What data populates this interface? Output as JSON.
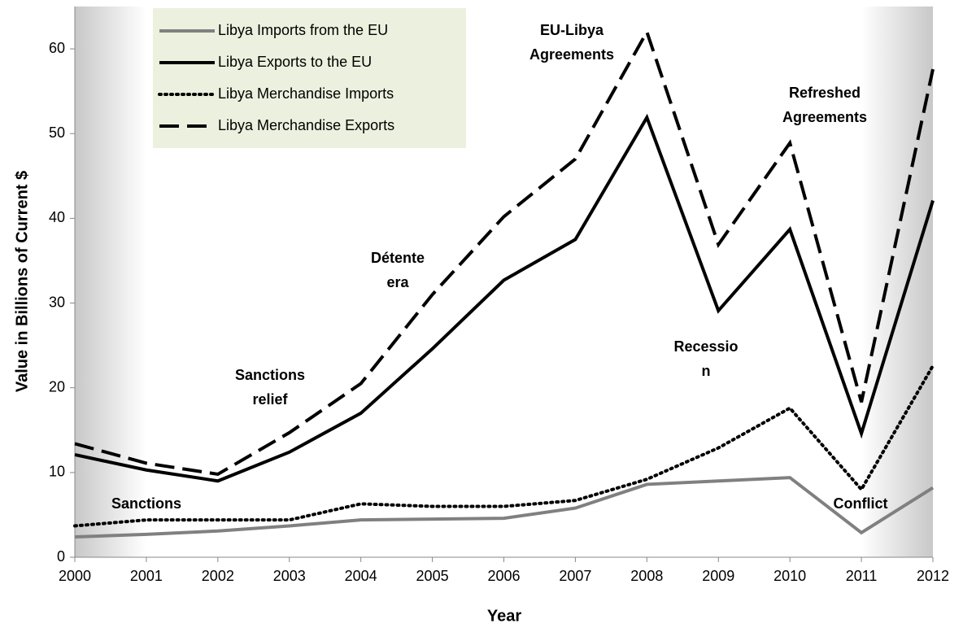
{
  "chart_data": {
    "type": "line",
    "x_label": "Year",
    "y_label": "Value in Billions of Current $",
    "x": [
      2000,
      2001,
      2002,
      2003,
      2004,
      2005,
      2006,
      2007,
      2008,
      2009,
      2010,
      2011,
      2012
    ],
    "xlim": [
      2000,
      2012
    ],
    "xticks": [
      2000,
      2001,
      2002,
      2003,
      2004,
      2005,
      2006,
      2007,
      2008,
      2009,
      2010,
      2011,
      2012
    ],
    "ylim": [
      0,
      65
    ],
    "yticks": [
      0,
      10,
      20,
      30,
      40,
      50,
      60
    ],
    "legend": "top-left",
    "series": [
      {
        "name": "Libya Imports from the EU",
        "color": "#808080",
        "dash": "solid",
        "values": [
          2.4,
          2.7,
          3.1,
          3.7,
          4.4,
          4.5,
          4.6,
          5.8,
          8.6,
          9.0,
          9.4,
          2.9,
          8.2
        ]
      },
      {
        "name": "Libya Exports to the EU",
        "color": "#000000",
        "dash": "solid",
        "values": [
          12.1,
          10.3,
          9.0,
          12.4,
          17.0,
          24.6,
          32.7,
          37.5,
          51.9,
          29.1,
          38.7,
          14.6,
          42.1
        ]
      },
      {
        "name": "Libya Merchandise Imports",
        "color": "#000000",
        "dash": "dotted",
        "values": [
          3.7,
          4.4,
          4.4,
          4.4,
          6.3,
          6.0,
          6.0,
          6.7,
          9.2,
          12.9,
          17.6,
          8.0,
          22.6
        ]
      },
      {
        "name": "Libya Merchandise Exports",
        "color": "#000000",
        "dash": "dashed",
        "values": [
          13.4,
          11.1,
          9.8,
          14.7,
          20.5,
          31.0,
          40.2,
          47.0,
          62.0,
          36.9,
          48.9,
          18.3,
          57.6
        ]
      }
    ],
    "annotations": [
      [
        "Sanctions"
      ],
      [
        "Sanctions",
        "relief"
      ],
      [
        "Détente",
        "era"
      ],
      [
        "EU-Libya",
        "Agreements"
      ],
      [
        "Refreshed",
        "Agreements"
      ],
      [
        "Recessio",
        "n"
      ],
      [
        "Conflict"
      ]
    ]
  }
}
